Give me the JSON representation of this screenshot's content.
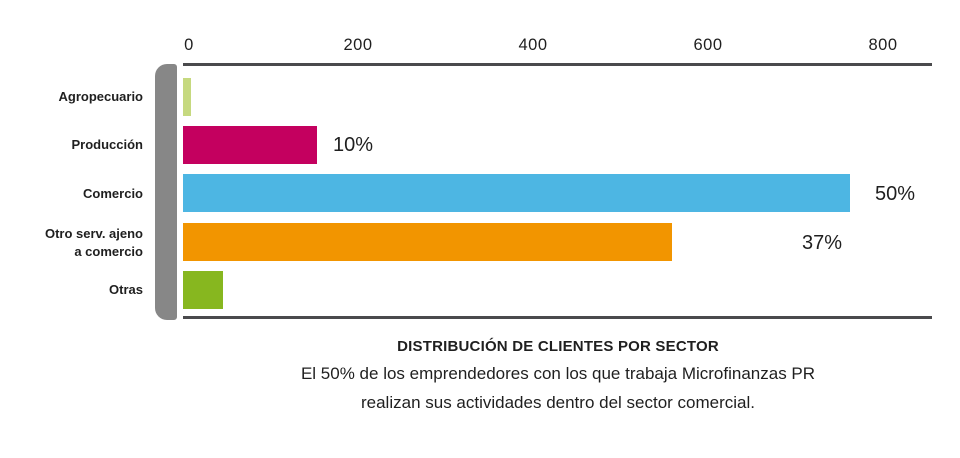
{
  "chart_data": {
    "type": "bar",
    "orientation": "horizontal",
    "title": "DISTRIBUCIÓN DE CLIENTES POR SECTOR",
    "subtitle_lines": [
      "El 50% de los emprendedores con los que trabaja Microfinanzas PR",
      "realizan sus actividades dentro del sector comercial."
    ],
    "categories": [
      "Agropecuario",
      "Producción",
      "Comercio",
      "Otro serv. ajeno\na comercio",
      "Otras"
    ],
    "values": [
      9,
      153,
      762,
      559,
      46
    ],
    "bar_labels": [
      "",
      "10%",
      "50%",
      "37%",
      ""
    ],
    "bar_colors": [
      "#c6d97f",
      "#c4005f",
      "#4db6e3",
      "#f29500",
      "#87b71f"
    ],
    "x_ticks": [
      "0",
      "200",
      "400",
      "600",
      "800"
    ],
    "x_tick_values": [
      0,
      200,
      400,
      600,
      800
    ],
    "xlim": [
      0,
      856
    ],
    "grid": false,
    "legend": "none",
    "colors": {
      "axis_line": "#4a4a4d",
      "pillar": "#878787",
      "text": "#1f1f1f"
    }
  }
}
